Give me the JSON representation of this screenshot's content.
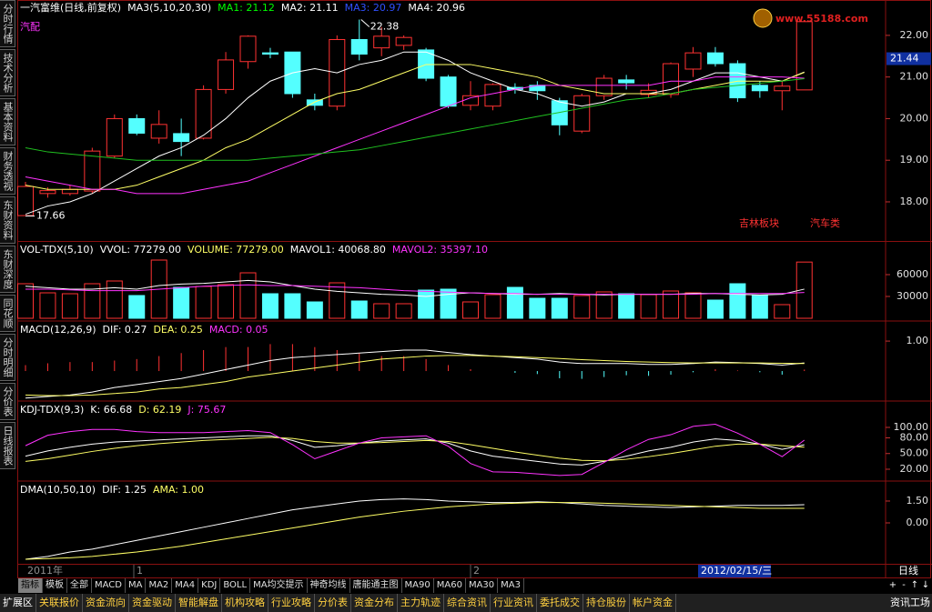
{
  "ui": {
    "sidebar": [
      "分时行情",
      "技术分析",
      "基本资料",
      "财务透视",
      "东财资料",
      "东财深度",
      "同花顺",
      "分时明细",
      "分价表",
      "日线报表"
    ],
    "logo": "www.55188.com",
    "date_axis": {
      "labels": [
        "2011年",
        "1",
        "2"
      ],
      "cursor_date": "2012/02/15/三",
      "period": "日线"
    },
    "nav_buttons": [
      "+",
      "-",
      "↑",
      "↓"
    ],
    "indicator_tabs": [
      "指标",
      "模板",
      "全部",
      "MACD",
      "MA",
      "MA2",
      "MA4",
      "KDJ",
      "BOLL",
      "MA均交提示",
      "神奇均线",
      "唐能通主图",
      "MA90",
      "MA60",
      "MA30",
      "MA3"
    ],
    "bottom_tabs": [
      "扩展区",
      "关联报价",
      "资金流向",
      "资金驱动",
      "智能解盘",
      "机构攻略",
      "行业攻略",
      "分价表",
      "资金分布",
      "主力轨迹",
      "综合资讯",
      "行业资讯",
      "委托成交",
      "持仓股份",
      "帐户资金"
    ],
    "bottom_right": "资讯工场"
  },
  "chart_data": [
    {
      "type": "candlestick",
      "header": [
        {
          "text": "一汽富维(日线,前复权)",
          "color": "#ffffff"
        },
        {
          "text": "MA3(5,10,20,30)",
          "color": "#ffffff"
        },
        {
          "text": "MA1: 21.12",
          "color": "#00ff00"
        },
        {
          "text": "MA2: 21.11",
          "color": "#ffffff"
        },
        {
          "text": "MA3: 20.97",
          "color": "#3050ff"
        },
        {
          "text": "MA4: 20.96",
          "color": "#ffffff"
        }
      ],
      "categories": [
        null,
        null,
        null,
        null,
        null,
        null,
        null,
        null,
        null,
        null,
        null,
        null,
        null,
        null,
        null,
        null,
        null,
        null,
        null,
        null,
        null,
        null,
        null,
        null,
        null,
        null,
        null,
        null,
        null,
        null,
        null,
        null,
        null,
        null,
        null,
        null
      ],
      "open": [
        17.67,
        18.2,
        18.2,
        18.26,
        19.1,
        20.0,
        19.53,
        19.64,
        19.53,
        20.7,
        21.37,
        21.58,
        21.6,
        20.45,
        20.3,
        21.9,
        21.7,
        21.76,
        21.65,
        21.0,
        20.32,
        20.3,
        20.75,
        20.8,
        20.43,
        19.7,
        20.55,
        20.93,
        20.58,
        20.58,
        21.19,
        21.58,
        21.32,
        20.8,
        20.67,
        20.69
      ],
      "close": [
        18.37,
        18.27,
        18.3,
        19.22,
        20.0,
        19.65,
        19.86,
        19.45,
        20.7,
        21.41,
        21.98,
        21.55,
        20.6,
        20.32,
        21.9,
        21.55,
        21.98,
        21.95,
        20.97,
        20.3,
        20.55,
        20.82,
        20.7,
        20.67,
        19.85,
        20.55,
        20.97,
        20.86,
        20.68,
        21.32,
        21.58,
        21.32,
        20.5,
        20.67,
        20.78,
        22.33
      ],
      "high": [
        18.48,
        18.35,
        18.4,
        19.3,
        20.1,
        20.1,
        20.2,
        20.0,
        20.8,
        21.6,
        22.0,
        21.7,
        21.6,
        20.6,
        22.0,
        22.38,
        22.2,
        22.0,
        21.7,
        21.05,
        20.9,
        20.85,
        20.85,
        20.9,
        20.5,
        20.6,
        21.05,
        21.05,
        20.85,
        21.35,
        21.72,
        21.72,
        21.4,
        20.9,
        20.9,
        22.33
      ],
      "low": [
        17.66,
        18.1,
        18.15,
        18.2,
        19.05,
        19.6,
        19.4,
        19.1,
        19.5,
        20.6,
        21.2,
        21.45,
        20.5,
        20.2,
        20.2,
        21.4,
        21.5,
        21.65,
        20.9,
        20.25,
        20.2,
        20.2,
        20.6,
        20.45,
        19.6,
        19.65,
        20.45,
        20.7,
        20.5,
        20.5,
        21.0,
        21.25,
        20.4,
        20.5,
        20.2,
        20.69
      ],
      "up_color": "#ff3232",
      "down_color": "#54ffff",
      "series": [
        {
          "color": "#ffffff",
          "values": [
            17.7,
            17.9,
            18.0,
            18.2,
            18.5,
            18.8,
            19.1,
            19.3,
            19.6,
            20.0,
            20.5,
            20.9,
            21.1,
            21.2,
            21.1,
            21.3,
            21.4,
            21.6,
            21.6,
            21.4,
            21.1,
            20.9,
            20.7,
            20.6,
            20.4,
            20.3,
            20.4,
            20.6,
            20.6,
            20.7,
            20.9,
            21.1,
            21.1,
            21.0,
            20.9,
            21.12
          ]
        },
        {
          "color": "#ffff66",
          "values": [
            18.4,
            18.3,
            18.3,
            18.3,
            18.3,
            18.4,
            18.6,
            18.8,
            19.0,
            19.3,
            19.5,
            19.8,
            20.1,
            20.4,
            20.6,
            20.7,
            20.9,
            21.1,
            21.3,
            21.3,
            21.3,
            21.2,
            21.1,
            21.0,
            20.8,
            20.7,
            20.6,
            20.6,
            20.6,
            20.6,
            20.7,
            20.8,
            20.9,
            20.9,
            20.9,
            21.11
          ]
        },
        {
          "color": "#ff33ff",
          "values": [
            18.6,
            18.5,
            18.4,
            18.3,
            18.3,
            18.2,
            18.2,
            18.2,
            18.3,
            18.4,
            18.5,
            18.7,
            18.9,
            19.1,
            19.3,
            19.5,
            19.7,
            19.9,
            20.1,
            20.3,
            20.5,
            20.6,
            20.7,
            20.8,
            20.8,
            20.8,
            20.8,
            20.8,
            20.8,
            20.9,
            20.9,
            21.0,
            21.0,
            21.0,
            21.0,
            20.97
          ]
        },
        {
          "color": "#20c020",
          "values": [
            19.3,
            19.2,
            19.15,
            19.1,
            19.05,
            19.0,
            19.0,
            19.0,
            19.0,
            19.0,
            19.0,
            19.05,
            19.1,
            19.15,
            19.2,
            19.25,
            19.35,
            19.45,
            19.55,
            19.65,
            19.75,
            19.85,
            19.95,
            20.05,
            20.15,
            20.25,
            20.35,
            20.45,
            20.5,
            20.6,
            20.7,
            20.75,
            20.8,
            20.85,
            20.9,
            20.96
          ]
        }
      ],
      "annotations": [
        {
          "text": "汽配",
          "color": "#ff33ff"
        },
        {
          "text": "22.38",
          "color": "#ffffff"
        },
        {
          "text": "17.66",
          "color": "#ffffff"
        },
        {
          "text": "吉林板块",
          "color": "#ff3232"
        },
        {
          "text": "汽车类",
          "color": "#ff3232"
        }
      ],
      "last_price": {
        "value": 21.44,
        "label": "21.44"
      },
      "ylim": [
        17.06,
        22.85
      ],
      "yticks": [
        {
          "value": 22,
          "label": "22.00"
        },
        {
          "value": 21,
          "label": "21.00"
        },
        {
          "value": 20,
          "label": "20.00"
        },
        {
          "value": 19,
          "label": "19.00"
        },
        {
          "value": 18,
          "label": "18.00"
        }
      ]
    },
    {
      "type": "volume",
      "header": [
        {
          "text": "VOL-TDX(5,10)",
          "color": "#ffffff"
        },
        {
          "text": "VVOL: 77279.00",
          "color": "#ffffff"
        },
        {
          "text": "VOLUME: 77279.00",
          "color": "#ffff66"
        },
        {
          "text": "MAVOL1: 40068.80",
          "color": "#ffffff"
        },
        {
          "text": "MAVOL2: 35397.10",
          "color": "#ff33ff"
        }
      ],
      "values": [
        47500,
        35000,
        33750,
        47500,
        51250,
        31250,
        80000,
        42500,
        43750,
        46250,
        62500,
        33750,
        33750,
        22500,
        48750,
        23750,
        20000,
        20000,
        38750,
        40000,
        22500,
        32500,
        42500,
        27500,
        27500,
        31250,
        36250,
        33750,
        32500,
        37500,
        35000,
        25000,
        47500,
        31250,
        18750,
        77279
      ],
      "series": [
        {
          "color": "#ffffff",
          "values": [
            44000,
            42000,
            40000,
            40000,
            42000,
            40000,
            45000,
            47000,
            48000,
            50000,
            52000,
            50000,
            45000,
            40000,
            37000,
            35000,
            33000,
            32000,
            30000,
            33000,
            35000,
            34000,
            33000,
            33000,
            34000,
            33000,
            32000,
            33000,
            33000,
            33000,
            34000,
            34000,
            33000,
            32000,
            33000,
            40068.8
          ]
        },
        {
          "color": "#ff33ff",
          "values": [
            40000,
            40000,
            39000,
            38000,
            38000,
            38000,
            40000,
            42000,
            44000,
            45000,
            46000,
            45000,
            45000,
            44000,
            43000,
            42000,
            40000,
            38000,
            37000,
            36000,
            35000,
            34000,
            34000,
            33000,
            33000,
            33000,
            33000,
            33000,
            33000,
            33000,
            33000,
            34000,
            34000,
            34000,
            34000,
            35397.1
          ]
        }
      ],
      "ylim": [
        0,
        105000
      ],
      "yticks": [
        60000,
        30000
      ]
    },
    {
      "type": "macd",
      "header": [
        {
          "text": "MACD(12,26,9)",
          "color": "#ffffff"
        },
        {
          "text": "DIF: 0.27",
          "color": "#ffffff"
        },
        {
          "text": "DEA: 0.25",
          "color": "#ffff66"
        },
        {
          "text": "MACD: 0.05",
          "color": "#ff33ff"
        }
      ],
      "values": [
        0.2,
        0.26,
        0.3,
        0.3,
        0.35,
        0.4,
        0.5,
        0.6,
        0.7,
        0.8,
        0.8,
        0.9,
        0.9,
        0.8,
        0.7,
        0.6,
        0.5,
        0.5,
        0.4,
        0.2,
        0.06,
        0,
        -0.06,
        -0.1,
        -0.24,
        -0.26,
        -0.2,
        -0.14,
        -0.16,
        -0.12,
        -0.04,
        0.06,
        0.02,
        -0.04,
        -0.12,
        0.05
      ],
      "series": [
        {
          "color": "#ffffff",
          "values": [
            -0.9,
            -0.85,
            -0.8,
            -0.7,
            -0.55,
            -0.45,
            -0.35,
            -0.25,
            -0.1,
            0.05,
            0.2,
            0.35,
            0.45,
            0.5,
            0.55,
            0.6,
            0.65,
            0.7,
            0.7,
            0.62,
            0.55,
            0.5,
            0.45,
            0.4,
            0.3,
            0.25,
            0.25,
            0.25,
            0.22,
            0.22,
            0.25,
            0.3,
            0.28,
            0.25,
            0.2,
            0.27
          ]
        },
        {
          "color": "#ffff66",
          "values": [
            -0.8,
            -0.82,
            -0.82,
            -0.8,
            -0.75,
            -0.7,
            -0.6,
            -0.55,
            -0.45,
            -0.35,
            -0.2,
            -0.1,
            0.0,
            0.1,
            0.2,
            0.3,
            0.4,
            0.45,
            0.5,
            0.52,
            0.52,
            0.5,
            0.48,
            0.45,
            0.42,
            0.38,
            0.35,
            0.32,
            0.3,
            0.28,
            0.27,
            0.27,
            0.27,
            0.27,
            0.26,
            0.25
          ]
        }
      ],
      "up_color": "#ff3232",
      "down_color": "#54ffff",
      "ylim": [
        -0.97,
        1.64
      ],
      "yticks": [
        {
          "value": 1,
          "label": "1.00"
        }
      ]
    },
    {
      "type": "line",
      "header": [
        {
          "text": "KDJ-TDX(9,3)",
          "color": "#ffffff"
        },
        {
          "text": "K: 66.68",
          "color": "#ffffff"
        },
        {
          "text": "D: 62.19",
          "color": "#ffff66"
        },
        {
          "text": "J: 75.67",
          "color": "#ff33ff"
        }
      ],
      "series": [
        {
          "color": "#ffffff",
          "values": [
            45,
            55,
            62,
            68,
            72,
            74,
            76,
            78,
            80,
            82,
            84,
            84,
            75,
            62,
            65,
            70,
            74,
            76,
            78,
            70,
            55,
            45,
            40,
            35,
            30,
            28,
            35,
            45,
            55,
            62,
            72,
            78,
            75,
            68,
            58,
            66.68
          ]
        },
        {
          "color": "#ffff66",
          "values": [
            35,
            40,
            47,
            54,
            60,
            65,
            69,
            72,
            75,
            77,
            79,
            81,
            79,
            73,
            70,
            70,
            71,
            73,
            75,
            73,
            67,
            60,
            53,
            47,
            41,
            37,
            36,
            39,
            44,
            50,
            57,
            64,
            68,
            68,
            65,
            62.19
          ]
        },
        {
          "color": "#ff33ff",
          "values": [
            65,
            85,
            92,
            96,
            96,
            92,
            90,
            90,
            90,
            92,
            94,
            90,
            67,
            40,
            55,
            70,
            80,
            82,
            84,
            64,
            31,
            15,
            14,
            11,
            8,
            10,
            33,
            57,
            77,
            86,
            102,
            106,
            89,
            68,
            44,
            75.67
          ]
        }
      ],
      "ylim": [
        -0.9,
        148.7
      ],
      "yticks": [
        {
          "value": 100,
          "label": "100.00"
        },
        {
          "value": 80,
          "label": "80.00"
        },
        {
          "value": 50,
          "label": "50.00"
        },
        {
          "value": 20,
          "label": "20.00"
        }
      ]
    },
    {
      "type": "line",
      "header": [
        {
          "text": "DMA(10,50,10)",
          "color": "#ffffff"
        },
        {
          "text": "DIF: 1.25",
          "color": "#ffffff"
        },
        {
          "text": "AMA: 1.00",
          "color": "#ffff66"
        }
      ],
      "series": [
        {
          "color": "#ffffff",
          "values": [
            -2.5,
            -2.3,
            -2.0,
            -1.8,
            -1.5,
            -1.2,
            -0.9,
            -0.6,
            -0.3,
            0.0,
            0.3,
            0.6,
            0.9,
            1.1,
            1.3,
            1.5,
            1.6,
            1.65,
            1.6,
            1.5,
            1.45,
            1.4,
            1.4,
            1.45,
            1.4,
            1.3,
            1.2,
            1.15,
            1.1,
            1.05,
            1.1,
            1.15,
            1.2,
            1.2,
            1.2,
            1.25
          ]
        },
        {
          "color": "#ffff66",
          "values": [
            -2.5,
            -2.45,
            -2.4,
            -2.3,
            -2.15,
            -2.0,
            -1.8,
            -1.6,
            -1.35,
            -1.1,
            -0.85,
            -0.6,
            -0.35,
            -0.1,
            0.15,
            0.4,
            0.6,
            0.8,
            0.95,
            1.1,
            1.2,
            1.3,
            1.35,
            1.4,
            1.4,
            1.4,
            1.35,
            1.3,
            1.25,
            1.2,
            1.15,
            1.1,
            1.05,
            1.0,
            1.0,
            1.0
          ]
        }
      ],
      "ylim": [
        -2.81,
        2.81
      ],
      "yticks": [
        {
          "value": 1.5,
          "label": "1.50"
        },
        {
          "value": 0,
          "label": "0.00"
        }
      ]
    }
  ]
}
